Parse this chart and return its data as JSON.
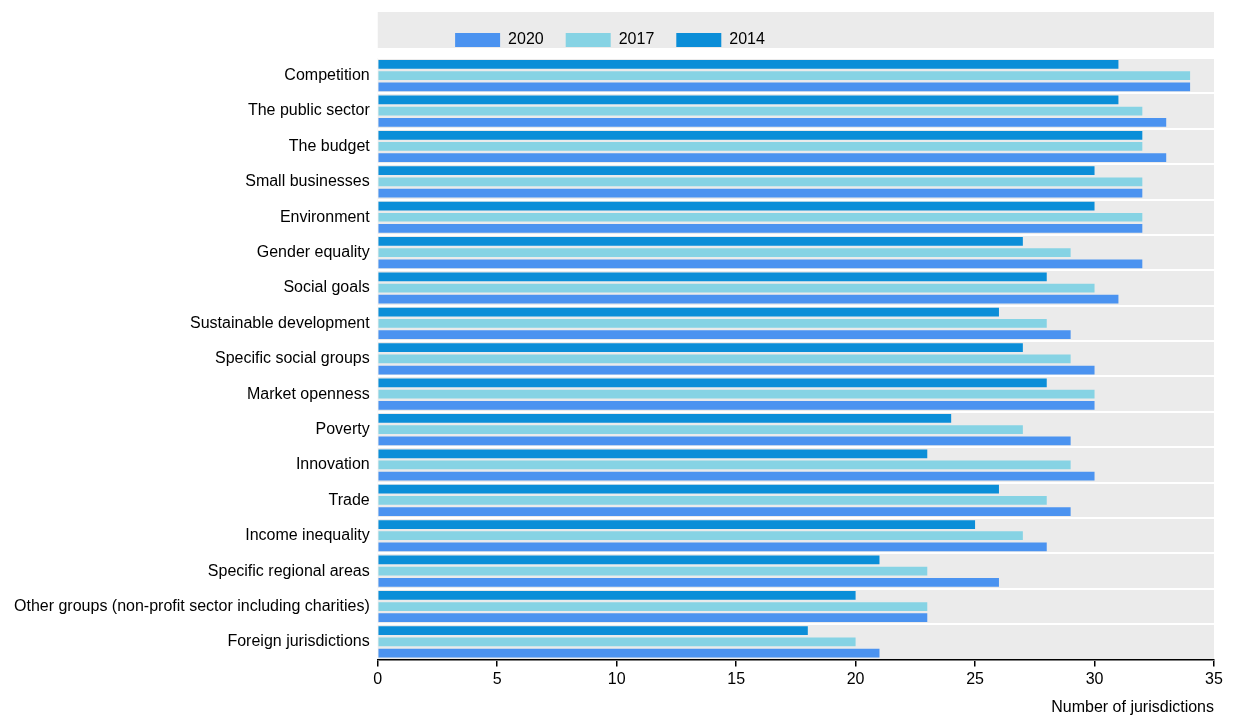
{
  "chart_data": {
    "type": "bar",
    "orientation": "horizontal",
    "xlabel": "Number of jurisdictions",
    "categories": [
      "Competition",
      "The public sector",
      "The budget",
      "Small businesses",
      "Environment",
      "Gender equality",
      "Social goals",
      "Sustainable development",
      "Specific social groups",
      "Market openness",
      "Poverty",
      "Innovation",
      "Trade",
      "Income inequality",
      "Specific regional areas",
      "Other groups (non-profit sector including charities)",
      "Foreign jurisdictions"
    ],
    "series": [
      {
        "name": "2014",
        "color": "#0b8ed8",
        "values": [
          31,
          31,
          32,
          30,
          30,
          27,
          28,
          26,
          27,
          28,
          24,
          23,
          26,
          25,
          21,
          20,
          18
        ]
      },
      {
        "name": "2017",
        "color": "#86d3e4",
        "values": [
          34,
          32,
          32,
          32,
          32,
          29,
          30,
          28,
          29,
          30,
          27,
          29,
          28,
          27,
          23,
          23,
          20
        ]
      },
      {
        "name": "2020",
        "color": "#4b93f0",
        "values": [
          34,
          33,
          33,
          32,
          32,
          32,
          31,
          29,
          30,
          30,
          29,
          30,
          29,
          28,
          26,
          23,
          21
        ]
      }
    ],
    "xlim": [
      0,
      35
    ],
    "xticks": [
      0,
      5,
      10,
      15,
      20,
      25,
      30,
      35
    ],
    "grid": "y",
    "legend": "top"
  }
}
